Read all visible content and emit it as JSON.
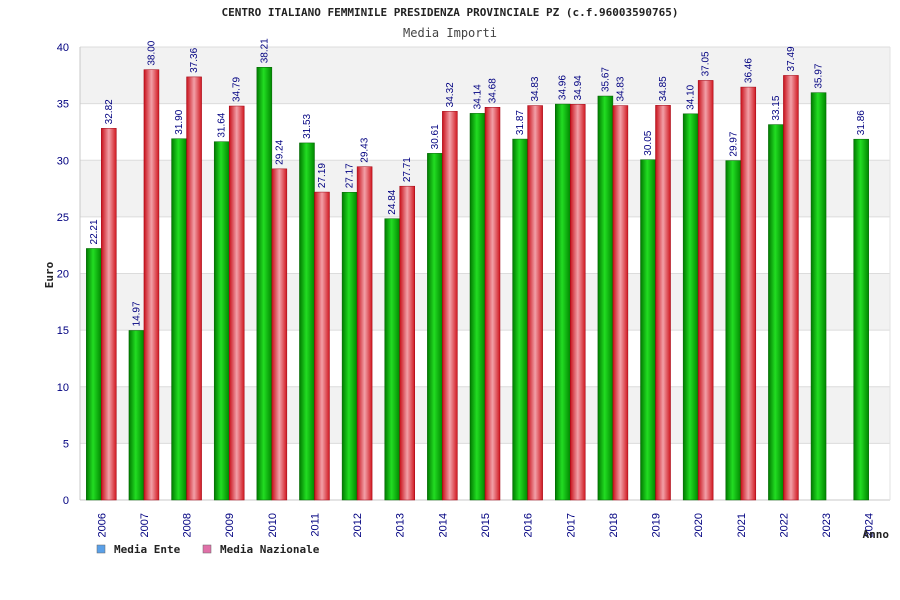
{
  "chart_data": {
    "type": "bar",
    "title": "CENTRO ITALIANO FEMMINILE PRESIDENZA PROVINCIALE PZ (c.f.96003590765)",
    "subtitle": "Media Importi",
    "xlabel": "Anno",
    "ylabel": "Euro",
    "ylim": [
      0,
      40
    ],
    "yticks": [
      0,
      5,
      10,
      15,
      20,
      25,
      30,
      35,
      40
    ],
    "grid": true,
    "legend_position": "bottom-left",
    "categories": [
      "2006",
      "2007",
      "2008",
      "2009",
      "2010",
      "2011",
      "2012",
      "2013",
      "2014",
      "2015",
      "2016",
      "2017",
      "2018",
      "2019",
      "2020",
      "2021",
      "2022",
      "2023",
      "2024"
    ],
    "series": [
      {
        "name": "Media Ente",
        "color": "#00b000",
        "legend_color": "#5aa0e8",
        "values": [
          22.21,
          14.97,
          31.9,
          31.64,
          38.21,
          31.53,
          27.17,
          24.84,
          30.61,
          34.14,
          31.87,
          34.96,
          35.67,
          30.05,
          34.1,
          29.97,
          33.15,
          35.97,
          31.86
        ],
        "labels": [
          "22.21",
          "14.97",
          "31.90",
          "31.64",
          "38.21",
          "31.53",
          "27.17",
          "24.84",
          "30.61",
          "34.14",
          "31.87",
          "34.96",
          "35.67",
          "30.05",
          "34.10",
          "29.97",
          "33.15",
          "35.97",
          "31.86"
        ]
      },
      {
        "name": "Media Nazionale",
        "color": "#e8202a",
        "legend_color": "#e070a8",
        "values": [
          32.82,
          38.0,
          37.36,
          34.79,
          29.24,
          27.19,
          29.43,
          27.71,
          34.32,
          34.68,
          34.83,
          34.94,
          34.83,
          34.85,
          37.05,
          36.46,
          37.49,
          null,
          null
        ],
        "labels": [
          "32.82",
          "38.00",
          "37.36",
          "34.79",
          "29.24",
          "27.19",
          "29.43",
          "27.71",
          "34.32",
          "34.68",
          "34.83",
          "34.94",
          "34.83",
          "34.85",
          "37.05",
          "36.46",
          "37.49",
          null,
          null
        ]
      }
    ]
  }
}
